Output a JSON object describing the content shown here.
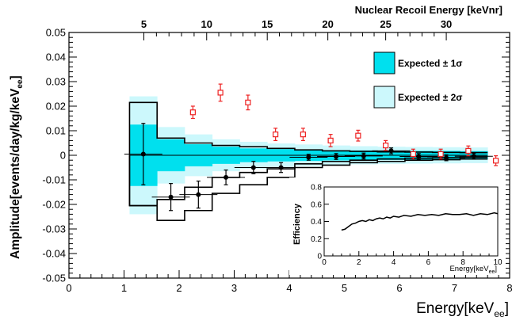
{
  "chart_data": {
    "type": "scatter",
    "xlabel_main": "Energy[keV",
    "xlabel_sub": "ee",
    "xlabel_close": "]",
    "ylabel_main": "Amplitude[events/day/kg/keV",
    "ylabel_sub": "ee",
    "ylabel_close": "]",
    "top_axis_label": "Nuclear Recoil Energy [keVnr]",
    "xlim": [
      0,
      8
    ],
    "ylim": [
      -0.05,
      0.05
    ],
    "x_ticks": [
      0,
      1,
      2,
      3,
      4,
      5,
      6,
      7,
      8
    ],
    "x_tick_labels": [
      "0",
      "1",
      "2",
      "3",
      "4",
      "5",
      "6",
      "7",
      "8"
    ],
    "y_ticks": [
      -0.05,
      -0.04,
      -0.03,
      -0.02,
      -0.01,
      0,
      0.01,
      0.02,
      0.03,
      0.04,
      0.05
    ],
    "y_tick_labels": [
      "-0.05",
      "-0.04",
      "-0.03",
      "-0.02",
      "-0.01",
      "0",
      "0.01",
      "0.02",
      "0.03",
      "0.04",
      "0.05"
    ],
    "top_ticks": [
      {
        "ee": 1.36,
        "label": "5"
      },
      {
        "ee": 2.5,
        "label": "10"
      },
      {
        "ee": 3.6,
        "label": "15"
      },
      {
        "ee": 4.7,
        "label": "20"
      },
      {
        "ee": 5.75,
        "label": "25"
      },
      {
        "ee": 6.85,
        "label": "30"
      }
    ],
    "legend": [
      {
        "label": "Expected ± 1σ",
        "color": "#00e0ee"
      },
      {
        "label": "Expected ± 2σ",
        "color": "#ccf8fc"
      }
    ],
    "band_edges": [
      1.1,
      1.6,
      2.1,
      2.6,
      3.1,
      3.6,
      4.1,
      4.6,
      5.1,
      5.6,
      6.1,
      6.6,
      7.1,
      7.6
    ],
    "band_1sigma_upper": [
      0.0125,
      0.0065,
      0.0045,
      0.0035,
      0.0028,
      0.0025,
      0.0023,
      0.0021,
      0.002,
      0.0019,
      0.0018,
      0.0018,
      0.0017
    ],
    "band_1sigma_lower": [
      -0.0125,
      -0.0065,
      -0.0045,
      -0.0035,
      -0.0028,
      -0.0025,
      -0.0023,
      -0.0021,
      -0.002,
      -0.0019,
      -0.0018,
      -0.0018,
      -0.0017
    ],
    "band_2sigma_upper": [
      0.024,
      0.0115,
      0.0085,
      0.0065,
      0.0055,
      0.0048,
      0.0044,
      0.004,
      0.0037,
      0.0035,
      0.0034,
      0.0033,
      0.0032
    ],
    "band_2sigma_lower": [
      -0.024,
      -0.0115,
      -0.0085,
      -0.0065,
      -0.0055,
      -0.0048,
      -0.0044,
      -0.004,
      -0.0037,
      -0.0035,
      -0.0034,
      -0.0033,
      -0.0032
    ],
    "outline_upper": [
      0.0215,
      0.007,
      0.005,
      0.004,
      0.0035,
      0.0028,
      0.0022,
      0.0018,
      0.0016,
      0.0014,
      0.0013,
      0.0012,
      0.0011
    ],
    "outline_lower_1": [
      -0.0205,
      -0.018,
      -0.013,
      -0.009,
      -0.007,
      -0.0055,
      -0.0035,
      -0.0025,
      -0.002,
      -0.0015,
      -0.0012,
      -0.001,
      -0.0008
    ],
    "outline_lower_2": [
      -0.0205,
      -0.0265,
      -0.0225,
      -0.0155,
      -0.012,
      -0.009,
      -0.005,
      -0.004,
      -0.003,
      -0.0025,
      -0.002,
      -0.0018,
      -0.0015
    ],
    "series": [
      {
        "name": "data",
        "color": "#000000",
        "marker": "filled-circle",
        "x": [
          1.35,
          1.85,
          2.35,
          2.85,
          3.35,
          3.85,
          4.35,
          4.85,
          5.35,
          5.85,
          6.35,
          6.85,
          7.35
        ],
        "y": [
          0.0005,
          -0.017,
          -0.016,
          -0.009,
          -0.005,
          -0.005,
          -0.0008,
          -0.0005,
          -0.0003,
          0.0018,
          -0.0005,
          -0.001,
          -0.0004
        ],
        "err": [
          0.0125,
          0.0055,
          0.0055,
          0.003,
          0.0025,
          0.002,
          0.0012,
          0.0012,
          0.0012,
          0.0012,
          0.0012,
          0.0012,
          0.0012
        ]
      },
      {
        "name": "comparison",
        "color": "#ee2222",
        "marker": "open-square",
        "x": [
          2.25,
          2.75,
          3.25,
          3.75,
          4.25,
          4.75,
          5.25,
          5.75,
          6.25,
          6.75,
          7.25,
          7.75
        ],
        "y": [
          0.0175,
          0.0255,
          0.0215,
          0.0085,
          0.0085,
          0.006,
          0.008,
          0.004,
          0.0005,
          0.0005,
          0.0018,
          -0.0022
        ],
        "err": [
          0.0025,
          0.0035,
          0.003,
          0.0025,
          0.0025,
          0.0025,
          0.0022,
          0.002,
          0.002,
          0.002,
          0.002,
          0.002
        ]
      }
    ],
    "inset": {
      "ylabel": "Efficiency",
      "xlabel_main": "Energy[keV",
      "xlabel_sub": "ee",
      "xlabel_close": "]",
      "xlim": [
        0,
        10
      ],
      "ylim": [
        0,
        0.8
      ],
      "x_ticks": [
        0,
        2,
        4,
        6,
        8,
        10
      ],
      "x_tick_labels": [
        "0",
        "2",
        "4",
        "6",
        "8",
        "10"
      ],
      "y_ticks": [
        0,
        0.2,
        0.4,
        0.6,
        0.8
      ],
      "y_tick_labels": [
        "0",
        "0.2",
        "0.4",
        "0.6",
        "0.8"
      ],
      "x": [
        1.0,
        1.2,
        1.4,
        1.6,
        1.8,
        2.0,
        2.2,
        2.4,
        2.6,
        2.8,
        3.0,
        3.2,
        3.4,
        3.6,
        3.8,
        4.0,
        4.3,
        4.6,
        5.0,
        5.4,
        5.8,
        6.2,
        6.6,
        7.0,
        7.4,
        7.8,
        8.2,
        8.6,
        9.0,
        9.4,
        9.8,
        10.0
      ],
      "y": [
        0.3,
        0.31,
        0.34,
        0.37,
        0.38,
        0.4,
        0.41,
        0.4,
        0.42,
        0.41,
        0.43,
        0.44,
        0.43,
        0.45,
        0.44,
        0.46,
        0.45,
        0.47,
        0.46,
        0.48,
        0.47,
        0.48,
        0.47,
        0.49,
        0.48,
        0.48,
        0.49,
        0.47,
        0.49,
        0.48,
        0.5,
        0.49
      ]
    }
  }
}
